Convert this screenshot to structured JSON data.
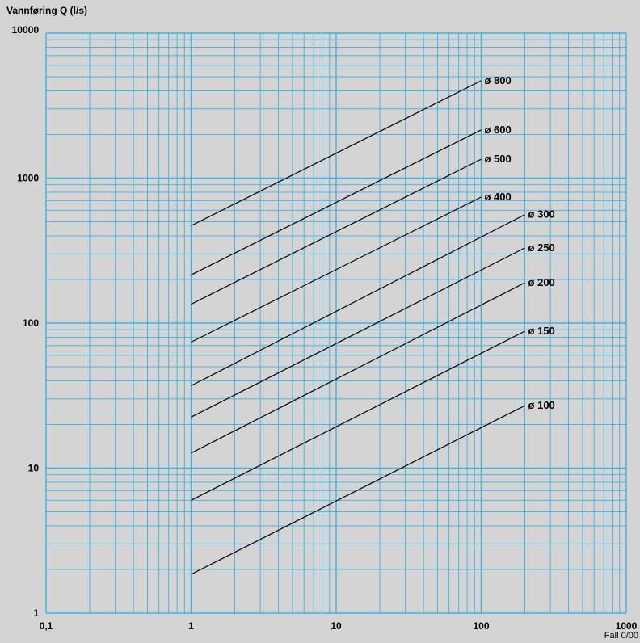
{
  "chart_data": {
    "type": "line",
    "title": "",
    "ylabel": "Vannføring Q (l/s)",
    "xlabel": "Fall 0/00",
    "x_scale": "log",
    "y_scale": "log",
    "xlim": [
      0.1,
      1000
    ],
    "ylim": [
      1,
      10000
    ],
    "x_tick_labels": [
      "0,1",
      "1",
      "10",
      "100",
      "1000"
    ],
    "y_tick_labels": [
      "1",
      "10",
      "100",
      "1000",
      "10000"
    ],
    "grid": true,
    "colors": {
      "background": "#d4d4d4",
      "grid": "#33b5e5",
      "line": "#000000"
    },
    "series": [
      {
        "name": "ø 800",
        "x": [
          1,
          100
        ],
        "y": [
          470,
          4700
        ]
      },
      {
        "name": "ø 600",
        "x": [
          1,
          100
        ],
        "y": [
          215,
          2150
        ]
      },
      {
        "name": "ø 500",
        "x": [
          1,
          100
        ],
        "y": [
          135,
          1350
        ]
      },
      {
        "name": "ø 400",
        "x": [
          1,
          100
        ],
        "y": [
          74,
          740
        ]
      },
      {
        "name": "ø 300",
        "x": [
          1,
          200
        ],
        "y": [
          37,
          560
        ]
      },
      {
        "name": "ø 250",
        "x": [
          1,
          200
        ],
        "y": [
          22.5,
          330
        ]
      },
      {
        "name": "ø 200",
        "x": [
          1,
          200
        ],
        "y": [
          12.7,
          190
        ]
      },
      {
        "name": "ø 150",
        "x": [
          1,
          200
        ],
        "y": [
          6,
          88
        ]
      },
      {
        "name": "ø 100",
        "x": [
          1,
          200
        ],
        "y": [
          1.85,
          27
        ]
      }
    ]
  }
}
